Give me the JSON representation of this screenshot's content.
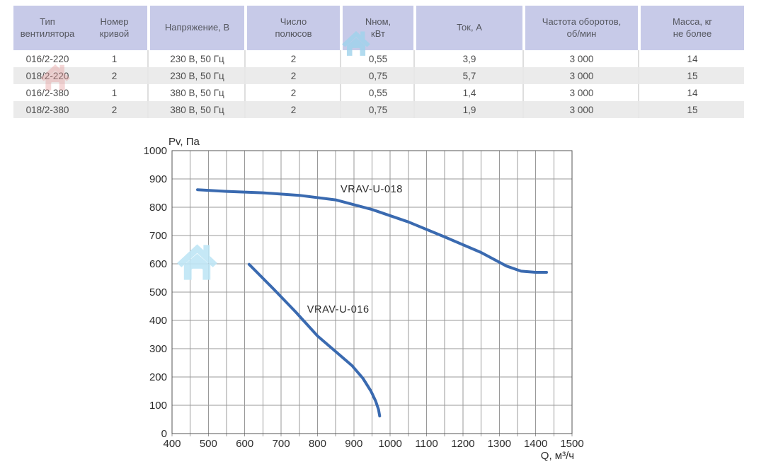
{
  "table": {
    "header_bg": "#c7cae8",
    "row_alt_bg": "#ebebeb",
    "headers": [
      "Тип\nвентилятора",
      "Номер\nкривой",
      "Напряжение, В",
      "Число\nполюсов",
      "Nном,\nкВт",
      "Ток, А",
      "Частота оборотов,\nоб/мин",
      "Масса, кг\nне более"
    ],
    "rows": [
      [
        "016/2-220",
        "1",
        "230 В, 50 Гц",
        "2",
        "0,55",
        "3,9",
        "3 000",
        "14"
      ],
      [
        "018/2-220",
        "2",
        "230 В, 50 Гц",
        "2",
        "0,75",
        "5,7",
        "3 000",
        "15"
      ],
      [
        "016/2-380",
        "1",
        "380 В, 50 Гц",
        "2",
        "0,55",
        "1,4",
        "3 000",
        "14"
      ],
      [
        "018/2-380",
        "2",
        "380 В, 50 Гц",
        "2",
        "0,75",
        "1,9",
        "3 000",
        "15"
      ]
    ]
  },
  "watermarks": [
    {
      "name": "house-watermark-header",
      "color": "#9fd3ec",
      "opacity": 0.8
    },
    {
      "name": "house-watermark-pink",
      "color": "#e89b9b",
      "opacity": 0.4
    },
    {
      "name": "house-watermark-chart",
      "color": "#bfe6f6",
      "opacity": 0.9
    }
  ],
  "chart_data": {
    "type": "line",
    "title": "",
    "xlabel": "Q, м³/ч",
    "ylabel": "Pv, Па",
    "xlim": [
      400,
      1500
    ],
    "ylim": [
      0,
      1000
    ],
    "x_ticks": [
      400,
      500,
      600,
      700,
      800,
      900,
      1000,
      1100,
      1200,
      1300,
      1400,
      1500
    ],
    "y_ticks": [
      0,
      100,
      200,
      300,
      400,
      500,
      600,
      700,
      800,
      900,
      1000
    ],
    "x_grid_step": 50,
    "y_grid_step": 100,
    "grid": true,
    "grid_color": "#999999",
    "border_color": "#555555",
    "legend_position": "inline-labels",
    "series": [
      {
        "name": "VRAV-U-018",
        "color": "#3a6ab0",
        "label_at": [
          949,
          865
        ],
        "points": [
          [
            470,
            862
          ],
          [
            550,
            856
          ],
          [
            650,
            851
          ],
          [
            750,
            842
          ],
          [
            850,
            826
          ],
          [
            950,
            792
          ],
          [
            1050,
            748
          ],
          [
            1150,
            695
          ],
          [
            1250,
            640
          ],
          [
            1320,
            592
          ],
          [
            1360,
            574
          ],
          [
            1400,
            570
          ],
          [
            1430,
            570
          ]
        ]
      },
      {
        "name": "VRAV-U-016",
        "color": "#3a6ab0",
        "label_at": [
          857,
          440
        ],
        "points": [
          [
            612,
            598
          ],
          [
            680,
            510
          ],
          [
            740,
            430
          ],
          [
            800,
            345
          ],
          [
            850,
            290
          ],
          [
            895,
            240
          ],
          [
            925,
            195
          ],
          [
            947,
            150
          ],
          [
            960,
            115
          ],
          [
            968,
            85
          ],
          [
            971,
            62
          ]
        ]
      }
    ]
  }
}
